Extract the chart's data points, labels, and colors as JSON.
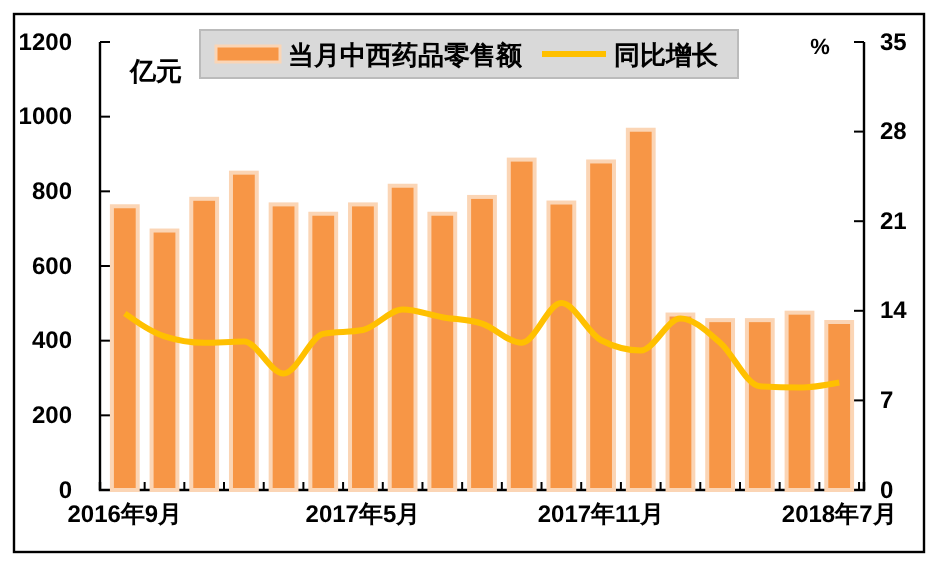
{
  "chart_data": {
    "type": "bar",
    "ylabel": "亿元",
    "y2label": "%",
    "categories": [
      "2016年9月",
      null,
      null,
      null,
      null,
      null,
      "2017年5月",
      null,
      null,
      null,
      null,
      null,
      "2017年11月",
      null,
      null,
      null,
      null,
      null,
      "2018年7月"
    ],
    "series": [
      {
        "name": "当月中西药品零售额",
        "color": "#f79646",
        "values": [
          760,
          695,
          780,
          850,
          765,
          740,
          765,
          815,
          740,
          785,
          885,
          770,
          880,
          965,
          470,
          455,
          455,
          475,
          450
        ]
      },
      {
        "name": "同比增长",
        "type": "line",
        "axis": "y2",
        "color": "#ffc000",
        "values": [
          13.8,
          12.0,
          11.5,
          11.6,
          9.1,
          12.2,
          12.5,
          14.1,
          13.5,
          13.0,
          11.5,
          14.6,
          11.7,
          10.9,
          13.4,
          11.5,
          8.1,
          8.0,
          8.4
        ]
      }
    ],
    "ylim": [
      0,
      1200
    ],
    "yticks": [
      0,
      200,
      400,
      600,
      800,
      1000,
      1200
    ],
    "y2lim": [
      0,
      35
    ],
    "y2ticks": [
      0,
      7,
      14,
      21,
      28,
      35
    ],
    "legend": "top",
    "grid": false,
    "marker": "none",
    "line_style": "solid"
  }
}
